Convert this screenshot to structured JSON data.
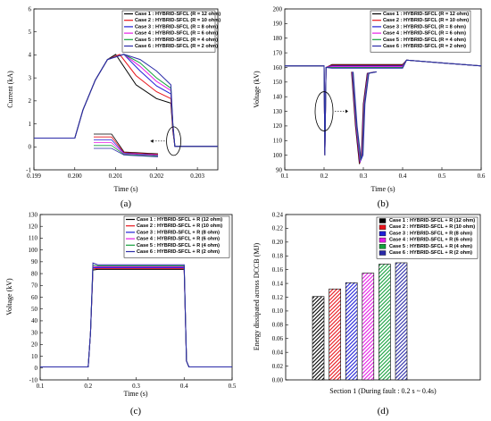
{
  "figure": {
    "panels": [
      {
        "caption": "(a)"
      },
      {
        "caption": "(b)"
      },
      {
        "caption": "(c)"
      },
      {
        "caption": "(d)"
      }
    ]
  },
  "chart_data": [
    {
      "type": "line",
      "panel": "a",
      "xlabel": "Time (s)",
      "ylabel": "Current (kA)",
      "xlim": [
        0.199,
        0.2035
      ],
      "ylim": [
        -1,
        6
      ],
      "xticks": [
        "0.199",
        "0.200",
        "0.201",
        "0.202",
        "0.203"
      ],
      "yticks": [
        "-1",
        "0",
        "1",
        "2",
        "3",
        "4",
        "5",
        "6"
      ],
      "legend_position": "top-right",
      "colors": [
        "#000000",
        "#e8141b",
        "#1f1fd6",
        "#e61de6",
        "#14a03c",
        "#2a2aa8"
      ],
      "series": [
        {
          "name": "Case 1 : HYBRID-SFCL  (R = 12 ohm)",
          "x": [
            0.199,
            0.2,
            0.2002,
            0.2005,
            0.2008,
            0.201,
            0.2015,
            0.202,
            0.20235,
            0.2024,
            0.20245,
            0.2035
          ],
          "y": [
            0.38,
            0.38,
            1.6,
            2.9,
            3.8,
            4.02,
            2.7,
            2.1,
            1.9,
            0.7,
            0.02,
            0.02
          ]
        },
        {
          "name": "Case 2 : HYBRID-SFCL  (R = 10 ohm)",
          "x": [
            0.199,
            0.2,
            0.2002,
            0.2005,
            0.2008,
            0.2011,
            0.2015,
            0.202,
            0.20235,
            0.2024,
            0.20245,
            0.2035
          ],
          "y": [
            0.38,
            0.38,
            1.6,
            2.9,
            3.8,
            4.02,
            3.1,
            2.4,
            2.1,
            0.8,
            0.02,
            0.02
          ]
        },
        {
          "name": "Case 3 : HYBRID-SFCL  (R = 8 ohm)",
          "x": [
            0.199,
            0.2,
            0.2002,
            0.2005,
            0.2008,
            0.2012,
            0.2016,
            0.202,
            0.20235,
            0.2024,
            0.20245,
            0.2035
          ],
          "y": [
            0.38,
            0.38,
            1.6,
            2.9,
            3.8,
            4.02,
            3.3,
            2.65,
            2.3,
            0.9,
            0.02,
            0.02
          ]
        },
        {
          "name": "Case 4 : HYBRID-SFCL  (R = 6 ohm)",
          "x": [
            0.199,
            0.2,
            0.2002,
            0.2005,
            0.2008,
            0.2012,
            0.2016,
            0.202,
            0.20235,
            0.2024,
            0.20245,
            0.2035
          ],
          "y": [
            0.38,
            0.38,
            1.6,
            2.9,
            3.8,
            4.03,
            3.5,
            2.85,
            2.45,
            0.95,
            0.02,
            0.02
          ]
        },
        {
          "name": "Case 5 : HYBRID-SFCL  (R = 4 ohm)",
          "x": [
            0.199,
            0.2,
            0.2002,
            0.2005,
            0.2008,
            0.2012,
            0.2016,
            0.202,
            0.20235,
            0.2024,
            0.20245,
            0.2035
          ],
          "y": [
            0.38,
            0.38,
            1.6,
            2.9,
            3.8,
            4.03,
            3.65,
            3.0,
            2.55,
            1.0,
            0.02,
            0.02
          ]
        },
        {
          "name": "Case 6 : HYBRID-SFCL  (R = 2 ohm)",
          "x": [
            0.199,
            0.2,
            0.2002,
            0.2005,
            0.2008,
            0.2012,
            0.2016,
            0.202,
            0.20235,
            0.2024,
            0.20245,
            0.2035
          ],
          "y": [
            0.38,
            0.38,
            1.6,
            2.9,
            3.8,
            4.03,
            3.8,
            3.3,
            2.7,
            1.05,
            0.02,
            0.02
          ]
        }
      ]
    },
    {
      "type": "line",
      "panel": "b",
      "xlabel": "Time (s)",
      "ylabel": "Voltage (kV)",
      "xlim": [
        0.1,
        0.6
      ],
      "ylim": [
        90,
        200
      ],
      "xticks": [
        "0.1",
        "0.2",
        "0.3",
        "0.4",
        "0.5",
        "0.6"
      ],
      "yticks": [
        "90",
        "100",
        "110",
        "120",
        "130",
        "140",
        "150",
        "160",
        "170",
        "180",
        "190",
        "200"
      ],
      "legend_position": "top-right",
      "colors": [
        "#000000",
        "#e8141b",
        "#1f1fd6",
        "#e61de6",
        "#14a03c",
        "#2a2aa8"
      ],
      "series": [
        {
          "name": "Case 1 : HYBRID-SFCL  (R = 12 ohm)",
          "x": [
            0.1,
            0.2,
            0.202,
            0.205,
            0.22,
            0.4,
            0.41,
            0.6
          ],
          "y": [
            161,
            161,
            100,
            160,
            162,
            162,
            165,
            161
          ]
        },
        {
          "name": "Case 2 : HYBRID-SFCL  (R = 10 ohm)",
          "x": [
            0.1,
            0.2,
            0.202,
            0.205,
            0.22,
            0.4,
            0.41,
            0.6
          ],
          "y": [
            161,
            161,
            100,
            160,
            161.5,
            161.5,
            165,
            161
          ]
        },
        {
          "name": "Case 3 : HYBRID-SFCL  (R = 8 ohm)",
          "x": [
            0.1,
            0.2,
            0.202,
            0.205,
            0.22,
            0.4,
            0.41,
            0.6
          ],
          "y": [
            161,
            161,
            100,
            160,
            161,
            161,
            165,
            161
          ]
        },
        {
          "name": "Case 4 : HYBRID-SFCL  (R = 6 ohm)",
          "x": [
            0.1,
            0.2,
            0.202,
            0.205,
            0.22,
            0.4,
            0.41,
            0.6
          ],
          "y": [
            161,
            161,
            100,
            160,
            160.5,
            160.5,
            165,
            161
          ]
        },
        {
          "name": "Case 5 : HYBRID-SFCL  (R = 4 ohm)",
          "x": [
            0.1,
            0.2,
            0.202,
            0.205,
            0.22,
            0.4,
            0.41,
            0.6
          ],
          "y": [
            161,
            161,
            100,
            160,
            160,
            160,
            165,
            161
          ]
        },
        {
          "name": "Case 6 : HYBRID-SFCL  (R = 2 ohm)",
          "x": [
            0.1,
            0.2,
            0.202,
            0.205,
            0.22,
            0.4,
            0.41,
            0.6
          ],
          "y": [
            161,
            161,
            100,
            160,
            159.5,
            159.5,
            165,
            161
          ]
        }
      ],
      "inset": {
        "x": [
          0.27,
          0.28,
          0.29,
          0.295,
          0.3,
          0.31,
          0.33
        ],
        "y": [
          157,
          120,
          94,
          100,
          135,
          156,
          157
        ]
      }
    },
    {
      "type": "line",
      "panel": "c",
      "xlabel": "Time (s)",
      "ylabel": "Voltage (kV)",
      "xlim": [
        0.1,
        0.5
      ],
      "ylim": [
        -10,
        130
      ],
      "xticks": [
        "0.1",
        "0.2",
        "0.3",
        "0.4",
        "0.5"
      ],
      "yticks": [
        "-10",
        "0",
        "10",
        "20",
        "30",
        "40",
        "50",
        "60",
        "70",
        "80",
        "90",
        "100",
        "110",
        "120",
        "130"
      ],
      "legend_position": "top-right",
      "colors": [
        "#000000",
        "#e8141b",
        "#1f1fd6",
        "#e61de6",
        "#14a03c",
        "#2a2aa8"
      ],
      "series": [
        {
          "name": "Case 1 : HYBRID-SFCL + R (12 ohm)",
          "x": [
            0.1,
            0.2,
            0.205,
            0.21,
            0.22,
            0.4,
            0.405,
            0.41,
            0.5
          ],
          "y": [
            1,
            1,
            30,
            83,
            83.5,
            83.5,
            6,
            1,
            1
          ]
        },
        {
          "name": "Case 2 : HYBRID-SFCL + R (10 ohm)",
          "x": [
            0.1,
            0.2,
            0.205,
            0.21,
            0.22,
            0.4,
            0.405,
            0.41,
            0.5
          ],
          "y": [
            1,
            1,
            30,
            84,
            84.3,
            84.3,
            6,
            1,
            1
          ]
        },
        {
          "name": "Case 3 : HYBRID-SFCL + R  (8 ohm)",
          "x": [
            0.1,
            0.2,
            0.205,
            0.21,
            0.22,
            0.4,
            0.405,
            0.41,
            0.5
          ],
          "y": [
            1,
            1,
            30,
            85,
            85,
            85,
            6,
            1,
            1
          ]
        },
        {
          "name": "Case 4 : HYBRID-SFCL + R  (6 ohm)",
          "x": [
            0.1,
            0.2,
            0.205,
            0.21,
            0.22,
            0.4,
            0.405,
            0.41,
            0.5
          ],
          "y": [
            1,
            1,
            30,
            86,
            85.7,
            85.7,
            6,
            1,
            1
          ]
        },
        {
          "name": "Case 5 : HYBRID-SFCL + R  (4 ohm)",
          "x": [
            0.1,
            0.2,
            0.205,
            0.21,
            0.22,
            0.4,
            0.405,
            0.41,
            0.5
          ],
          "y": [
            1,
            1,
            30,
            87,
            86.5,
            86.5,
            6,
            1,
            1
          ]
        },
        {
          "name": "Case 6 : HYBRID-SFCL + R  (2 ohm)",
          "x": [
            0.1,
            0.2,
            0.205,
            0.21,
            0.22,
            0.4,
            0.405,
            0.41,
            0.5
          ],
          "y": [
            1,
            1,
            30,
            89,
            87.5,
            87.5,
            6,
            1,
            1
          ]
        }
      ]
    },
    {
      "type": "bar",
      "panel": "d",
      "xlabel": "Section 1 (During fault : 0.2 s ~ 0.4s)",
      "ylabel": "Energy dissipated across DCCB (MJ)",
      "ylim": [
        0,
        0.24
      ],
      "yticks": [
        "0.00",
        "0.02",
        "0.04",
        "0.06",
        "0.08",
        "0.10",
        "0.12",
        "0.14",
        "0.16",
        "0.18",
        "0.20",
        "0.22",
        "0.24"
      ],
      "legend_position": "top-right",
      "categories": [
        "Case 1 : HYBRID-SFCL + R (12 ohm)",
        "Case 2 : HYBRID-SFCL + R (10 ohm)",
        "Case 3 : HYBRID-SFCL + R  (8 ohm)",
        "Case 4 : HYBRID-SFCL + R  (6 ohm)",
        "Case 5 : HYBRID-SFCL + R  (4 ohm)",
        "Case 6 : HYBRID-SFCL + R  (2 ohm)"
      ],
      "values": [
        0.121,
        0.132,
        0.141,
        0.155,
        0.168,
        0.17
      ],
      "colors": [
        "#000000",
        "#e8141b",
        "#1f1fd6",
        "#e61de6",
        "#14a03c",
        "#2a2aa8"
      ]
    }
  ]
}
